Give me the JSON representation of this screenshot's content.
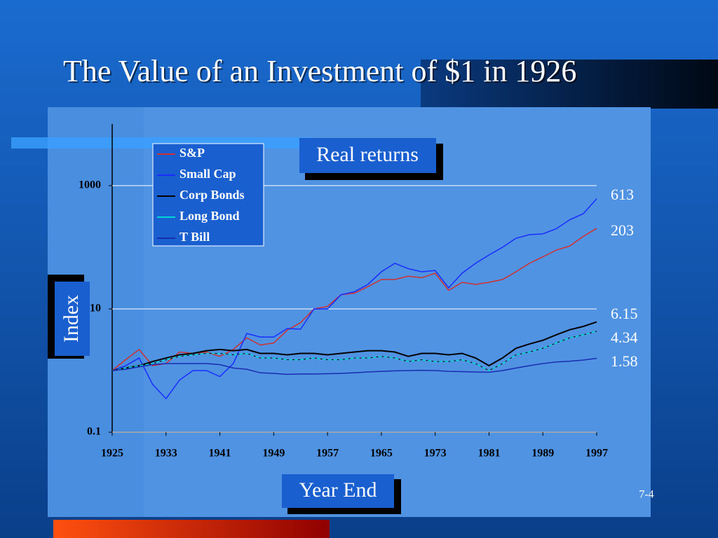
{
  "chart_data": {
    "type": "line",
    "title": "The Value of an Investment of $1 in 1926",
    "annotation": "Real returns",
    "ylabel": "Index",
    "xlabel": "Year End",
    "slide_number": "7-4",
    "log_y": true,
    "grid": true,
    "x": [
      1925,
      1927,
      1929,
      1931,
      1933,
      1935,
      1937,
      1939,
      1941,
      1943,
      1945,
      1947,
      1949,
      1951,
      1953,
      1955,
      1957,
      1959,
      1961,
      1963,
      1965,
      1967,
      1969,
      1971,
      1973,
      1975,
      1977,
      1979,
      1981,
      1983,
      1985,
      1987,
      1989,
      1991,
      1993,
      1995,
      1997
    ],
    "xlim": [
      1925,
      1997
    ],
    "xticks": [
      1925,
      1933,
      1941,
      1949,
      1957,
      1965,
      1973,
      1981,
      1989,
      1997
    ],
    "ylim": [
      0.1,
      10000
    ],
    "yticks": [
      0.1,
      10,
      1000
    ],
    "series": [
      {
        "name": "S&P",
        "color": "#d03030",
        "values": [
          1,
          1.5,
          2.2,
          1.2,
          1.3,
          2.0,
          1.9,
          2.0,
          1.7,
          2.2,
          3.4,
          2.6,
          2.8,
          4.5,
          6,
          10,
          11,
          17,
          18,
          23,
          30,
          30,
          34,
          32,
          38,
          20,
          27,
          25,
          27,
          30,
          40,
          55,
          70,
          90,
          105,
          150,
          203
        ]
      },
      {
        "name": "Small Cap",
        "color": "#1a2cff",
        "values": [
          1,
          1.2,
          1.6,
          0.6,
          0.35,
          0.7,
          1.0,
          1.0,
          0.8,
          1.3,
          4,
          3.5,
          3.5,
          4.8,
          4.7,
          10,
          10,
          17,
          19,
          25,
          40,
          55,
          45,
          40,
          42,
          22,
          38,
          55,
          75,
          100,
          140,
          160,
          165,
          200,
          280,
          350,
          613
        ]
      },
      {
        "name": "Corp Bonds",
        "color": "#000000",
        "values": [
          1,
          1.1,
          1.2,
          1.4,
          1.6,
          1.8,
          1.9,
          2.1,
          2.2,
          2.1,
          2.2,
          1.9,
          1.9,
          1.8,
          1.9,
          1.9,
          1.8,
          1.9,
          2.0,
          2.1,
          2.1,
          2.0,
          1.7,
          1.9,
          1.9,
          1.8,
          1.9,
          1.6,
          1.2,
          1.6,
          2.3,
          2.7,
          3.1,
          3.8,
          4.6,
          5.2,
          6.15
        ]
      },
      {
        "name": "Long Bond",
        "color": "#00d8d8",
        "values": [
          1,
          1.1,
          1.2,
          1.3,
          1.5,
          1.7,
          1.8,
          1.9,
          1.9,
          1.8,
          1.9,
          1.6,
          1.6,
          1.5,
          1.5,
          1.6,
          1.5,
          1.5,
          1.6,
          1.6,
          1.7,
          1.6,
          1.4,
          1.5,
          1.4,
          1.4,
          1.5,
          1.3,
          1.0,
          1.3,
          1.8,
          2.0,
          2.3,
          2.8,
          3.4,
          3.8,
          4.34
        ]
      },
      {
        "name": "T Bill",
        "color": "#1a2cb0",
        "values": [
          1,
          1.05,
          1.15,
          1.25,
          1.3,
          1.3,
          1.3,
          1.3,
          1.25,
          1.1,
          1.05,
          0.92,
          0.9,
          0.87,
          0.88,
          0.88,
          0.89,
          0.9,
          0.92,
          0.95,
          0.97,
          0.99,
          1.0,
          1.01,
          1.0,
          0.97,
          0.96,
          0.95,
          0.94,
          1.0,
          1.1,
          1.2,
          1.3,
          1.38,
          1.42,
          1.48,
          1.58
        ]
      }
    ]
  }
}
